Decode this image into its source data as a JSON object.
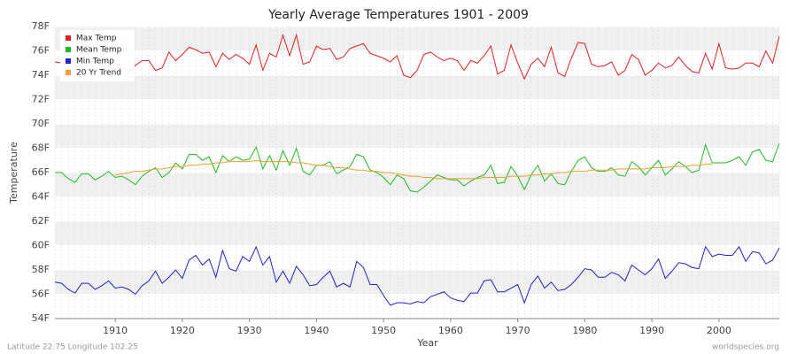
{
  "chart_data": {
    "type": "line",
    "title": "Yearly Average Temperatures 1901 - 2009",
    "xlabel": "Year",
    "ylabel": "Temperature",
    "footnote_left": "Latitude 22.75 Longitude 102.25",
    "footnote_right": "worldspecies.org",
    "legend": "upper left",
    "grid": true,
    "xlim": [
      1901,
      2009
    ],
    "xticks": [
      1910,
      1920,
      1930,
      1940,
      1950,
      1960,
      1970,
      1980,
      1990,
      2000
    ],
    "ylim": [
      54,
      78
    ],
    "yticks": [
      {
        "value": 54,
        "label": "54F"
      },
      {
        "value": 56,
        "label": "56F"
      },
      {
        "value": 58,
        "label": "58F"
      },
      {
        "value": 60,
        "label": "60F"
      },
      {
        "value": 62,
        "label": "62F"
      },
      {
        "value": 64,
        "label": "64F"
      },
      {
        "value": 66,
        "label": "66F"
      },
      {
        "value": 68,
        "label": "68F"
      },
      {
        "value": 70,
        "label": "70F"
      },
      {
        "value": 72,
        "label": "72F"
      },
      {
        "value": 74,
        "label": "74F"
      },
      {
        "value": 76,
        "label": "76F"
      },
      {
        "value": 78,
        "label": "78F"
      }
    ],
    "x": [
      1901,
      1902,
      1903,
      1904,
      1905,
      1906,
      1907,
      1908,
      1909,
      1910,
      1911,
      1912,
      1913,
      1914,
      1915,
      1916,
      1917,
      1918,
      1919,
      1920,
      1921,
      1922,
      1923,
      1924,
      1925,
      1926,
      1927,
      1928,
      1929,
      1930,
      1931,
      1932,
      1933,
      1934,
      1935,
      1936,
      1937,
      1938,
      1939,
      1940,
      1941,
      1942,
      1943,
      1944,
      1945,
      1946,
      1947,
      1948,
      1949,
      1950,
      1951,
      1952,
      1953,
      1954,
      1955,
      1956,
      1957,
      1958,
      1959,
      1960,
      1961,
      1962,
      1963,
      1964,
      1965,
      1966,
      1967,
      1968,
      1969,
      1970,
      1971,
      1972,
      1973,
      1974,
      1975,
      1976,
      1977,
      1978,
      1979,
      1980,
      1981,
      1982,
      1983,
      1984,
      1985,
      1986,
      1987,
      1988,
      1989,
      1990,
      1991,
      1992,
      1993,
      1994,
      1995,
      1996,
      1997,
      1998,
      1999,
      2000,
      2001,
      2002,
      2003,
      2004,
      2005,
      2006,
      2007,
      2008,
      2009
    ],
    "series": [
      {
        "name": "Max Temp",
        "color": "#e02020",
        "values": [
          75.1,
          75.0,
          74.8,
          75.3,
          74.6,
          75.4,
          75.2,
          75.0,
          74.3,
          75.0,
          74.7,
          74.3,
          74.8,
          75.2,
          75.2,
          74.4,
          74.6,
          75.9,
          75.2,
          75.7,
          76.3,
          76.1,
          75.8,
          75.9,
          74.7,
          75.8,
          75.3,
          75.7,
          75.4,
          74.9,
          76.5,
          74.4,
          75.8,
          75.5,
          77.3,
          75.6,
          77.3,
          74.9,
          75.1,
          76.4,
          76.1,
          76.2,
          75.3,
          75.5,
          76.2,
          76.4,
          76.6,
          75.8,
          75.6,
          75.4,
          75.1,
          75.6,
          74.0,
          73.8,
          74.4,
          75.7,
          75.9,
          75.5,
          75.2,
          75.4,
          75.2,
          74.4,
          75.2,
          75.0,
          75.6,
          76.4,
          74.1,
          74.4,
          76.5,
          75.0,
          73.7,
          74.9,
          75.4,
          74.7,
          76.3,
          74.2,
          73.9,
          75.4,
          76.7,
          76.6,
          74.9,
          74.7,
          74.8,
          75.1,
          74.0,
          74.4,
          75.7,
          75.3,
          74.0,
          74.4,
          75.0,
          74.6,
          74.8,
          75.5,
          74.8,
          74.3,
          74.2,
          75.8,
          74.5,
          76.6,
          74.6,
          74.5,
          74.6,
          75.0,
          75.0,
          74.7,
          76.0,
          75.0,
          77.2
        ]
      },
      {
        "name": "Mean Temp",
        "color": "#22bb22",
        "values": [
          66.0,
          66.0,
          65.5,
          65.2,
          65.9,
          65.9,
          65.4,
          65.7,
          66.1,
          65.6,
          65.7,
          65.4,
          65.0,
          65.7,
          66.1,
          66.4,
          65.6,
          66.0,
          66.8,
          66.3,
          67.5,
          67.5,
          67.0,
          67.3,
          66.0,
          67.4,
          66.9,
          67.3,
          67.0,
          67.1,
          68.1,
          66.3,
          67.4,
          66.2,
          67.8,
          66.6,
          68.0,
          66.1,
          65.8,
          66.6,
          66.6,
          66.9,
          65.9,
          66.2,
          66.5,
          67.5,
          67.3,
          66.2,
          66.0,
          65.6,
          65.0,
          65.8,
          65.5,
          64.5,
          64.4,
          64.8,
          65.3,
          65.8,
          65.6,
          65.4,
          65.4,
          64.9,
          65.3,
          65.6,
          65.8,
          66.6,
          65.1,
          65.2,
          66.5,
          65.7,
          64.6,
          65.8,
          66.6,
          65.3,
          65.9,
          65.1,
          65.0,
          66.1,
          67.0,
          67.3,
          66.4,
          66.1,
          66.1,
          66.4,
          65.8,
          65.7,
          66.9,
          66.5,
          65.8,
          66.4,
          67.0,
          65.8,
          66.3,
          66.9,
          66.5,
          66.0,
          66.2,
          68.3,
          66.8,
          66.8,
          66.8,
          67.0,
          67.3,
          66.6,
          67.7,
          67.9,
          67.0,
          66.9,
          68.4
        ]
      },
      {
        "name": "Min Temp",
        "color": "#2222cc",
        "values": [
          57.0,
          56.9,
          56.4,
          56.1,
          56.9,
          56.9,
          56.4,
          56.7,
          57.1,
          56.5,
          56.6,
          56.4,
          56.0,
          56.7,
          57.1,
          57.9,
          56.9,
          57.4,
          58.0,
          57.3,
          58.8,
          59.2,
          58.4,
          58.9,
          57.4,
          59.6,
          58.1,
          57.9,
          59.1,
          58.7,
          59.9,
          58.4,
          59.1,
          57.0,
          57.9,
          56.9,
          58.3,
          57.6,
          56.7,
          56.8,
          57.4,
          57.9,
          56.6,
          56.9,
          56.6,
          58.7,
          58.2,
          56.8,
          56.8,
          55.9,
          55.1,
          55.3,
          55.3,
          55.2,
          55.4,
          55.3,
          55.8,
          56.0,
          56.2,
          55.7,
          55.5,
          55.4,
          56.1,
          56.1,
          57.1,
          57.2,
          56.2,
          56.2,
          56.5,
          56.8,
          55.3,
          56.8,
          57.5,
          56.5,
          57.0,
          56.3,
          56.4,
          56.8,
          57.4,
          58.1,
          58.0,
          57.4,
          57.4,
          57.8,
          57.6,
          57.1,
          58.4,
          58.0,
          57.6,
          58.1,
          58.9,
          57.3,
          57.9,
          58.6,
          58.5,
          58.2,
          58.1,
          59.9,
          59.1,
          59.3,
          59.2,
          59.2,
          59.9,
          58.7,
          59.5,
          59.4,
          58.5,
          58.8,
          59.8
        ]
      },
      {
        "name": "20 Yr Trend",
        "color": "#f0a030",
        "values": [
          null,
          null,
          null,
          null,
          null,
          null,
          null,
          null,
          null,
          65.8,
          65.9,
          66.0,
          66.1,
          66.1,
          66.2,
          66.3,
          66.3,
          66.4,
          66.5,
          66.5,
          66.6,
          66.6,
          66.7,
          66.7,
          66.8,
          66.8,
          66.9,
          66.9,
          66.9,
          66.9,
          67.0,
          66.9,
          66.9,
          66.9,
          66.9,
          66.9,
          66.8,
          66.8,
          66.7,
          66.6,
          66.6,
          66.5,
          66.4,
          66.4,
          66.3,
          66.2,
          66.2,
          66.1,
          66.1,
          66.0,
          66.0,
          65.9,
          65.8,
          65.7,
          65.7,
          65.6,
          65.6,
          65.5,
          65.5,
          65.5,
          65.5,
          65.5,
          65.5,
          65.5,
          65.6,
          65.6,
          65.6,
          65.6,
          65.7,
          65.7,
          65.7,
          65.8,
          65.8,
          65.9,
          65.9,
          66.0,
          66.0,
          66.1,
          66.1,
          66.1,
          66.2,
          66.2,
          66.2,
          66.2,
          66.3,
          66.3,
          66.3,
          66.3,
          66.3,
          66.4,
          66.4,
          66.4,
          66.5,
          66.5,
          66.5,
          66.6,
          66.6,
          66.7,
          66.7,
          null,
          null,
          null,
          null,
          null,
          null,
          null,
          null,
          null,
          null
        ]
      }
    ]
  }
}
